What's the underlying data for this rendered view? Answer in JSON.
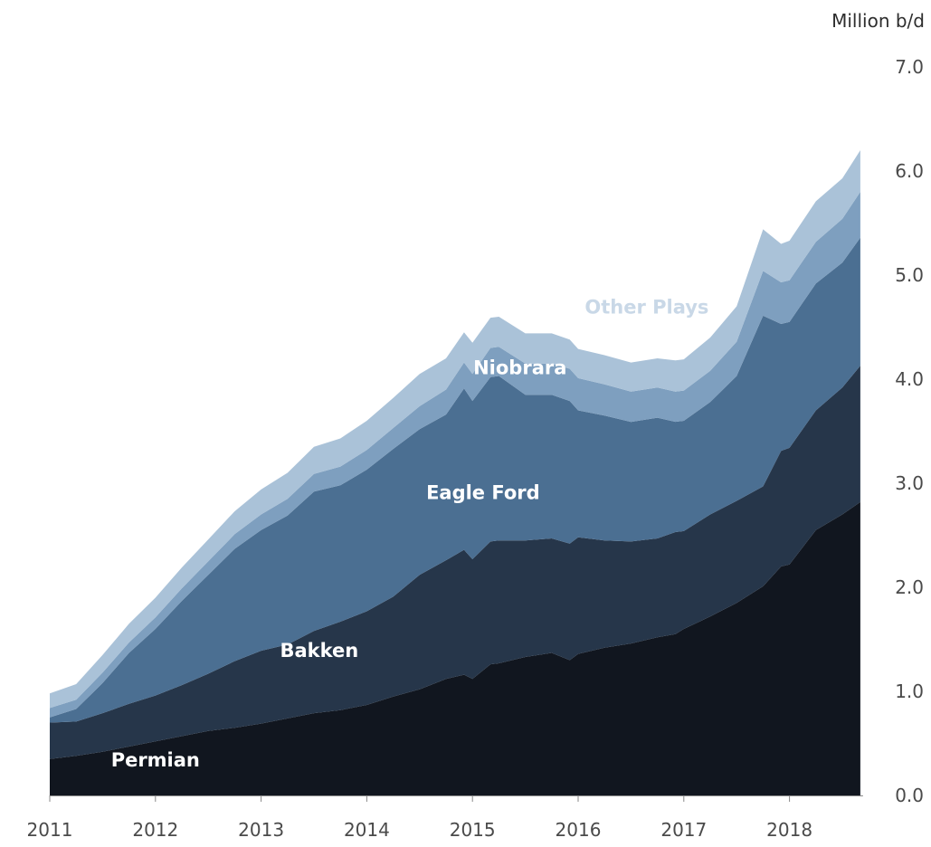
{
  "chart_data": {
    "type": "area",
    "stacked": true,
    "unit_label": "Million b/d",
    "x_ticks": [
      "2011",
      "2012",
      "2013",
      "2014",
      "2015",
      "2016",
      "2017",
      "2018"
    ],
    "y_ticks": [
      "0.0",
      "1.0",
      "2.0",
      "3.0",
      "4.0",
      "5.0",
      "6.0",
      "7.0"
    ],
    "ylim": [
      0,
      7
    ],
    "xlim": [
      2011.0,
      2018.67
    ],
    "grid": false,
    "legend": "inline labels",
    "x": [
      2011.0,
      2011.25,
      2011.5,
      2011.75,
      2012.0,
      2012.25,
      2012.5,
      2012.75,
      2013.0,
      2013.25,
      2013.5,
      2013.75,
      2014.0,
      2014.25,
      2014.5,
      2014.75,
      2014.92,
      2015.0,
      2015.17,
      2015.25,
      2015.5,
      2015.75,
      2015.92,
      2016.0,
      2016.25,
      2016.5,
      2016.75,
      2016.92,
      2017.0,
      2017.25,
      2017.5,
      2017.75,
      2017.92,
      2018.0,
      2018.25,
      2018.5,
      2018.67
    ],
    "series": [
      {
        "name": "Permian",
        "color": "#11161f",
        "values": [
          0.35,
          0.38,
          0.42,
          0.47,
          0.52,
          0.57,
          0.62,
          0.65,
          0.69,
          0.74,
          0.79,
          0.82,
          0.87,
          0.95,
          1.02,
          1.12,
          1.16,
          1.12,
          1.26,
          1.27,
          1.33,
          1.37,
          1.3,
          1.36,
          1.42,
          1.46,
          1.52,
          1.55,
          1.6,
          1.72,
          1.85,
          2.01,
          2.2,
          2.22,
          2.55,
          2.7,
          2.82
        ]
      },
      {
        "name": "Bakken",
        "color": "#26364a",
        "values": [
          0.35,
          0.33,
          0.37,
          0.41,
          0.44,
          0.49,
          0.55,
          0.64,
          0.7,
          0.71,
          0.79,
          0.85,
          0.9,
          0.96,
          1.1,
          1.14,
          1.2,
          1.15,
          1.18,
          1.18,
          1.12,
          1.1,
          1.12,
          1.12,
          1.03,
          0.98,
          0.95,
          0.98,
          0.94,
          0.98,
          0.98,
          0.96,
          1.11,
          1.12,
          1.15,
          1.22,
          1.31
        ]
      },
      {
        "name": "Eagle Ford",
        "color": "#4b6f92",
        "values": [
          0.05,
          0.12,
          0.29,
          0.49,
          0.64,
          0.81,
          0.95,
          1.08,
          1.16,
          1.24,
          1.34,
          1.31,
          1.36,
          1.42,
          1.4,
          1.4,
          1.55,
          1.52,
          1.58,
          1.58,
          1.4,
          1.38,
          1.37,
          1.22,
          1.2,
          1.15,
          1.16,
          1.06,
          1.06,
          1.08,
          1.2,
          1.64,
          1.22,
          1.21,
          1.22,
          1.2,
          1.23
        ]
      },
      {
        "name": "Niobrara",
        "color": "#7e9fbf",
        "values": [
          0.09,
          0.09,
          0.1,
          0.1,
          0.11,
          0.12,
          0.13,
          0.14,
          0.15,
          0.16,
          0.17,
          0.18,
          0.19,
          0.2,
          0.22,
          0.24,
          0.25,
          0.26,
          0.28,
          0.28,
          0.3,
          0.3,
          0.31,
          0.31,
          0.3,
          0.29,
          0.29,
          0.29,
          0.29,
          0.3,
          0.33,
          0.43,
          0.4,
          0.4,
          0.4,
          0.42,
          0.44
        ]
      },
      {
        "name": "Other Plays",
        "color": "#aac2d8",
        "values": [
          0.14,
          0.15,
          0.17,
          0.18,
          0.19,
          0.2,
          0.21,
          0.22,
          0.24,
          0.25,
          0.26,
          0.27,
          0.28,
          0.29,
          0.31,
          0.3,
          0.29,
          0.3,
          0.29,
          0.29,
          0.29,
          0.29,
          0.28,
          0.28,
          0.28,
          0.28,
          0.28,
          0.3,
          0.3,
          0.32,
          0.34,
          0.4,
          0.37,
          0.38,
          0.39,
          0.39,
          0.4
        ]
      }
    ],
    "area_labels": [
      {
        "series": "Permian",
        "text": "Permian",
        "x": 2012.0,
        "y": 0.28,
        "color": "#ffffff"
      },
      {
        "series": "Bakken",
        "text": "Bakken",
        "x": 2013.55,
        "y": 1.33,
        "color": "#ffffff"
      },
      {
        "series": "Eagle Ford",
        "text": "Eagle Ford",
        "x": 2015.1,
        "y": 2.85,
        "color": "#ffffff"
      },
      {
        "series": "Niobrara",
        "text": "Niobrara",
        "x": 2015.45,
        "y": 4.05,
        "color": "#ffffff"
      },
      {
        "series": "Other Plays",
        "text": "Other Plays",
        "x": 2016.65,
        "y": 4.63,
        "color": "#c9d8e7"
      }
    ]
  }
}
